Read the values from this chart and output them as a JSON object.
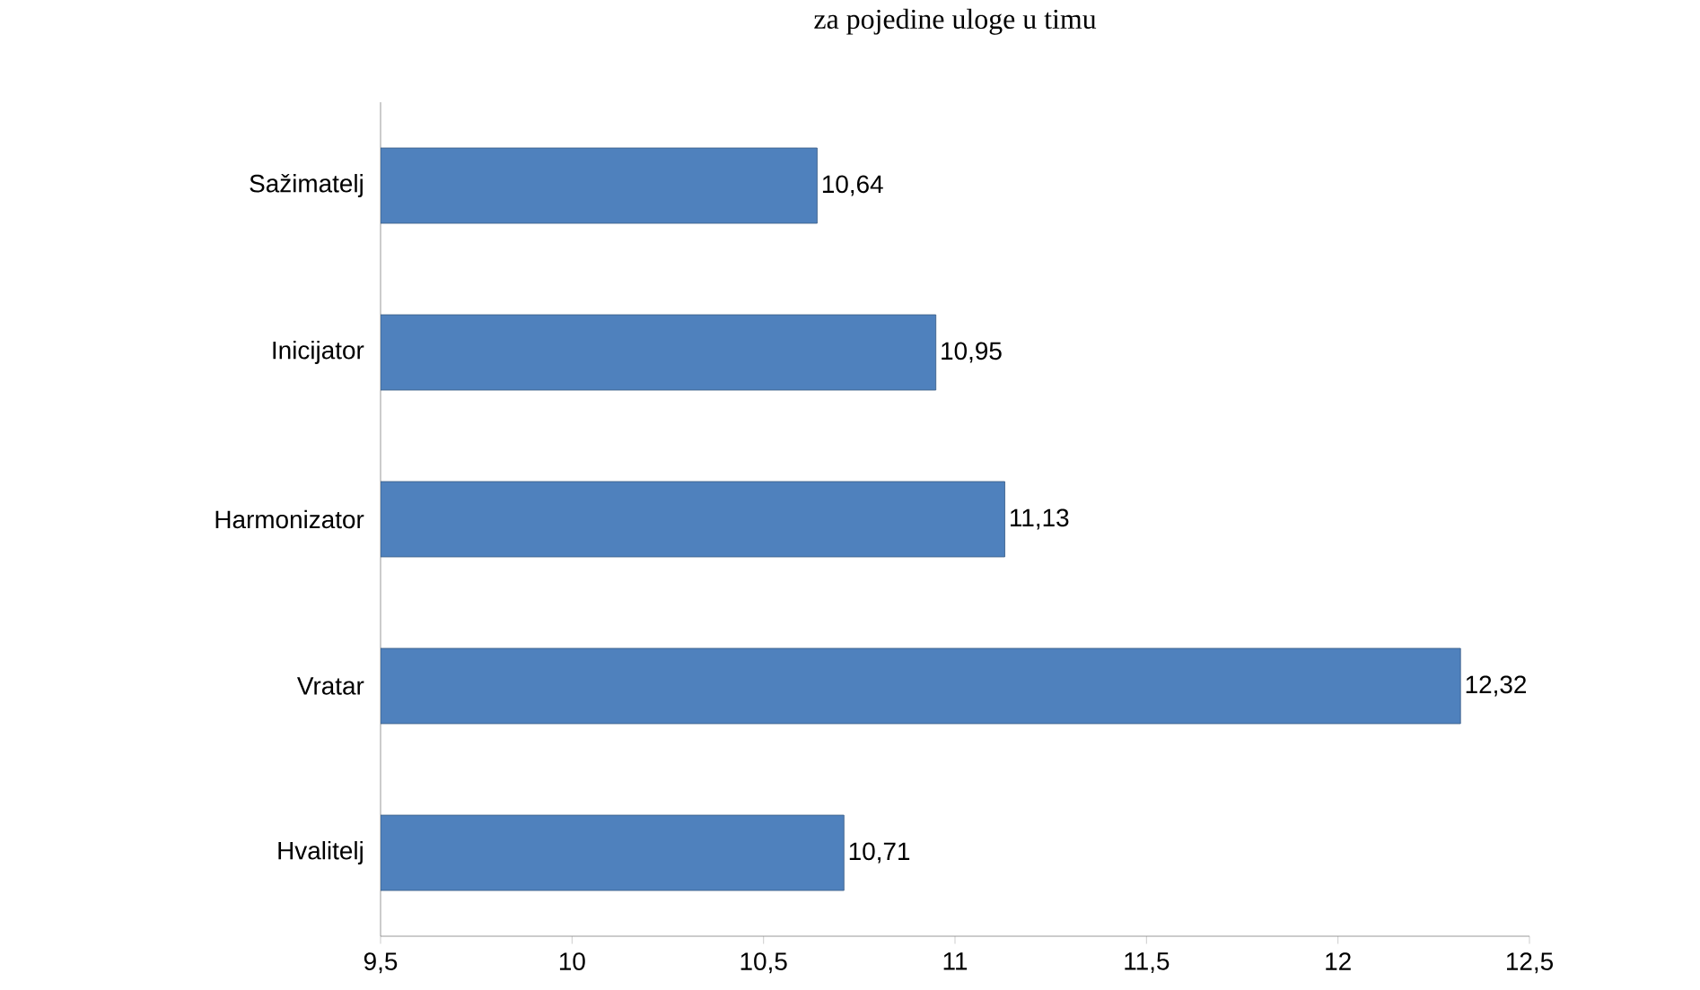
{
  "chart_data": {
    "type": "bar",
    "orientation": "horizontal",
    "title": "za pojedine uloge u timu",
    "categories": [
      "Sažimatelj",
      "Inicijator",
      "Harmonizator",
      "Vratar",
      "Hvalitelj"
    ],
    "values": [
      10.64,
      10.95,
      11.13,
      12.32,
      10.71
    ],
    "value_labels": [
      "10,64",
      "10,95",
      "11,13",
      "12,32",
      "10,71"
    ],
    "color": "#4f81bd",
    "xlim": [
      9.5,
      12.5
    ],
    "xticks": [
      {
        "value": 9.5,
        "label": "9,5"
      },
      10,
      {
        "value": 10.5,
        "label": "10,5"
      },
      11,
      {
        "value": 11.5,
        "label": "11,5"
      },
      12,
      {
        "value": 12.5,
        "label": "12,5"
      }
    ],
    "grid": false
  }
}
